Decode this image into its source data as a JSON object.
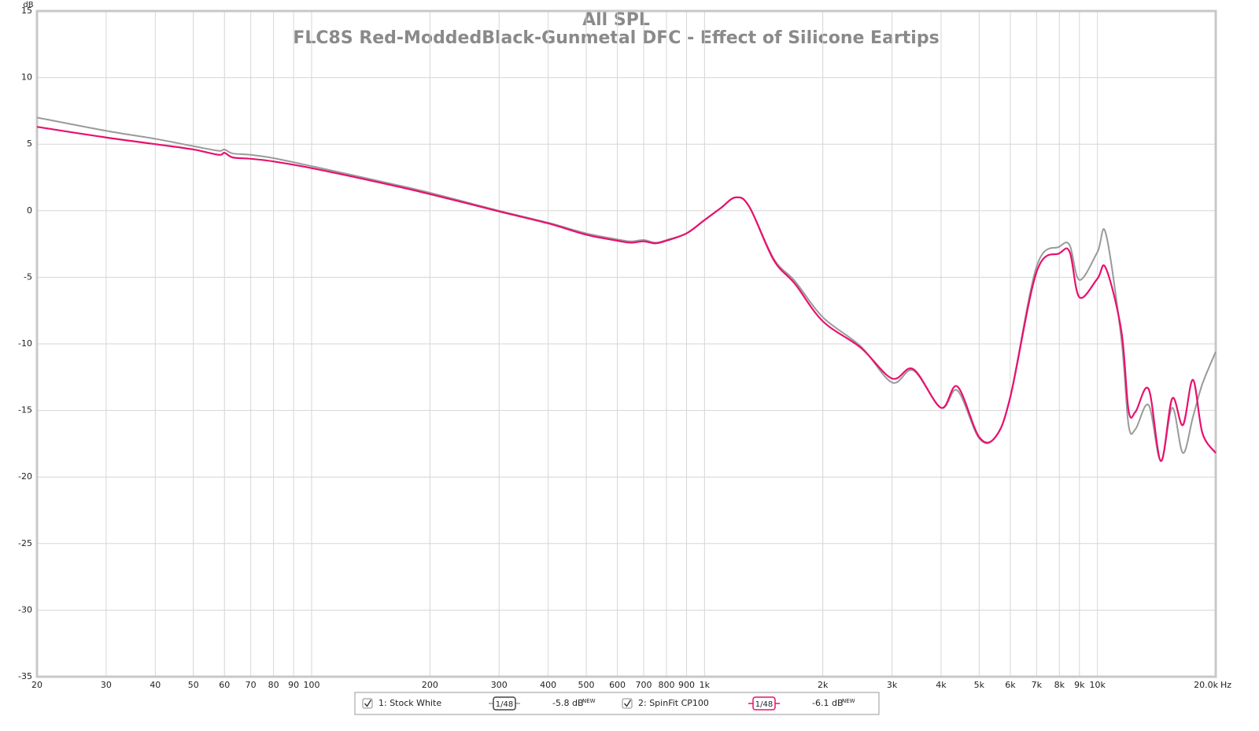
{
  "chart_data": {
    "type": "line",
    "title": "All SPL",
    "subtitle": "FLC8S Red-ModdedBlack-Gunmetal DFC - Effect of Silicone Eartips",
    "x_label": "Hz",
    "y_label": "dB",
    "log_x": true,
    "grid": true,
    "xlim": [
      20,
      20000
    ],
    "ylim": [
      -35,
      15
    ],
    "yticks": [
      -35,
      -30,
      -25,
      -20,
      -15,
      -10,
      -5,
      0,
      5,
      10,
      15
    ],
    "xticks": [
      20,
      30,
      40,
      50,
      60,
      70,
      80,
      90,
      100,
      200,
      300,
      400,
      500,
      600,
      700,
      800,
      900,
      {
        "value": 1000,
        "label": "1k"
      },
      {
        "value": 2000,
        "label": "2k"
      },
      {
        "value": 3000,
        "label": "3k"
      },
      {
        "value": 4000,
        "label": "4k"
      },
      {
        "value": 5000,
        "label": "5k"
      },
      {
        "value": 6000,
        "label": "6k"
      },
      {
        "value": 7000,
        "label": "7k"
      },
      {
        "value": 8000,
        "label": "8k"
      },
      {
        "value": 9000,
        "label": "9k"
      },
      {
        "value": 10000,
        "label": "10k"
      },
      {
        "value": 20000,
        "label": "20.0k"
      }
    ],
    "x": [
      20,
      30,
      40,
      50,
      58,
      60,
      63,
      70,
      80,
      100,
      150,
      200,
      300,
      400,
      500,
      600,
      650,
      700,
      750,
      800,
      900,
      1000,
      1100,
      1200,
      1300,
      1500,
      1700,
      2000,
      2500,
      3000,
      3400,
      4000,
      4400,
      5000,
      5500,
      6000,
      7000,
      8000,
      8500,
      9000,
      10000,
      10500,
      11500,
      12000,
      12500,
      13500,
      14500,
      15500,
      16500,
      17500,
      18500,
      20000
    ],
    "series": [
      {
        "name": "1: Stock White",
        "color": "#9a9a9a",
        "smoothing": "1/48",
        "level": "-5.8 dB",
        "level_badge": "NEW",
        "values": [
          7.0,
          6.0,
          5.4,
          4.85,
          4.5,
          4.6,
          4.3,
          4.2,
          3.95,
          3.35,
          2.2,
          1.35,
          0,
          -0.9,
          -1.7,
          -2.15,
          -2.3,
          -2.2,
          -2.4,
          -2.2,
          -1.7,
          -0.7,
          0.2,
          1.0,
          0.3,
          -3.6,
          -5.3,
          -8.0,
          -10.2,
          -12.9,
          -12.0,
          -14.8,
          -13.5,
          -17.1,
          -17.0,
          -14.0,
          -4.2,
          -2.7,
          -2.6,
          -5.2,
          -3.1,
          -1.7,
          -9.6,
          -16.1,
          -16.4,
          -14.6,
          -18.8,
          -14.8,
          -18.2,
          -15.5,
          -13.0,
          -10.6
        ]
      },
      {
        "name": "2: SpinFit CP100",
        "color": "#e8106e",
        "smoothing": "1/48",
        "level": "-6.1 dB",
        "level_badge": "NEW",
        "values": [
          6.3,
          5.5,
          5.0,
          4.6,
          4.2,
          4.35,
          4.0,
          3.9,
          3.7,
          3.2,
          2.1,
          1.25,
          -0.05,
          -0.95,
          -1.8,
          -2.25,
          -2.4,
          -2.3,
          -2.45,
          -2.25,
          -1.7,
          -0.7,
          0.2,
          1.0,
          0.3,
          -3.7,
          -5.5,
          -8.3,
          -10.3,
          -12.6,
          -11.9,
          -14.8,
          -13.2,
          -17.0,
          -17.0,
          -14.0,
          -4.6,
          -3.2,
          -3.1,
          -6.5,
          -5.1,
          -4.3,
          -9.0,
          -15.0,
          -15.1,
          -13.4,
          -18.8,
          -14.1,
          -16.1,
          -12.7,
          -16.7,
          -18.2
        ]
      }
    ]
  }
}
